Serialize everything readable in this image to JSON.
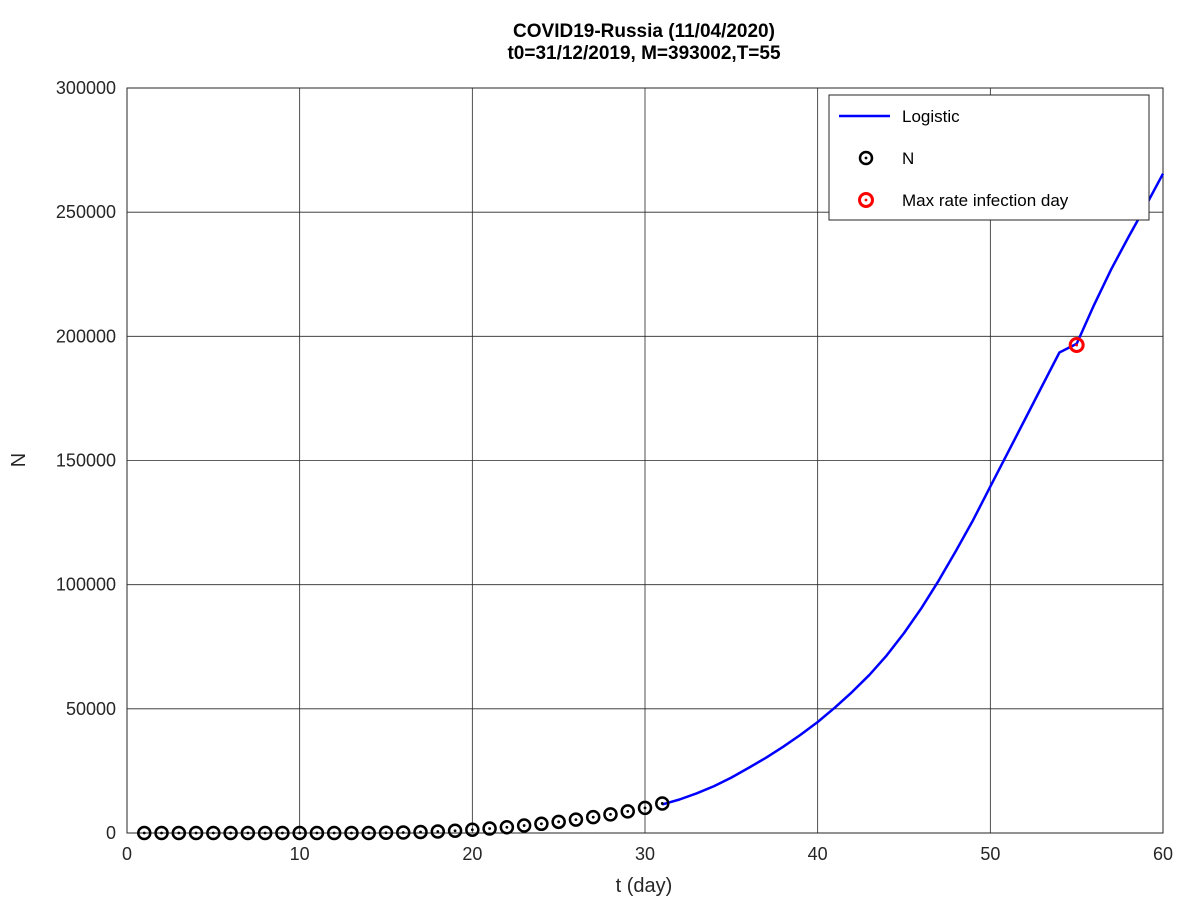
{
  "chart_data": {
    "type": "line",
    "title": "COVID19-Russia (11/04/2020)",
    "subtitle": "t0=31/12/2019, M=393002,T=55",
    "xlabel": "t (day)",
    "ylabel": "N",
    "xlim": [
      0,
      60
    ],
    "ylim": [
      0,
      300000
    ],
    "xticks": [
      0,
      10,
      20,
      30,
      40,
      50,
      60
    ],
    "yticks": [
      0,
      50000,
      100000,
      150000,
      200000,
      250000,
      300000
    ],
    "grid": true,
    "legend_position": "top-right",
    "legend": [
      "Logistic",
      "N",
      "Max rate infection day"
    ],
    "series": [
      {
        "name": "Logistic",
        "kind": "line",
        "color": "#0000ff",
        "x": [
          31,
          32,
          33,
          34,
          35,
          36,
          37,
          38,
          39,
          40,
          41,
          42,
          43,
          44,
          45,
          46,
          47,
          48,
          49,
          50,
          51,
          52,
          53,
          54,
          55,
          56,
          57,
          58,
          59,
          60
        ],
        "y": [
          11500,
          13500,
          16000,
          18900,
          22300,
          26200,
          30300,
          34700,
          39500,
          44700,
          50500,
          56800,
          63700,
          71500,
          80500,
          90500,
          101500,
          113500,
          126000,
          139500,
          153000,
          166500,
          180000,
          193500,
          197000,
          212500,
          227000,
          240000,
          252500,
          265500
        ]
      },
      {
        "name": "N",
        "kind": "markers",
        "color": "#000000",
        "x": [
          1,
          2,
          3,
          4,
          5,
          6,
          7,
          8,
          9,
          10,
          11,
          12,
          13,
          14,
          15,
          16,
          17,
          18,
          19,
          20,
          21,
          22,
          23,
          24,
          25,
          26,
          27,
          28,
          29,
          30,
          31
        ],
        "y": [
          0,
          0,
          0,
          0,
          0,
          0,
          0,
          0,
          0,
          0,
          0,
          0,
          0,
          0,
          100,
          200,
          400,
          600,
          900,
          1300,
          1800,
          2300,
          3000,
          3700,
          4500,
          5400,
          6400,
          7500,
          8700,
          10100,
          11900
        ]
      },
      {
        "name": "Max rate infection day",
        "kind": "marker",
        "color": "#ff0000",
        "x": [
          55
        ],
        "y": [
          196501
        ]
      }
    ]
  }
}
